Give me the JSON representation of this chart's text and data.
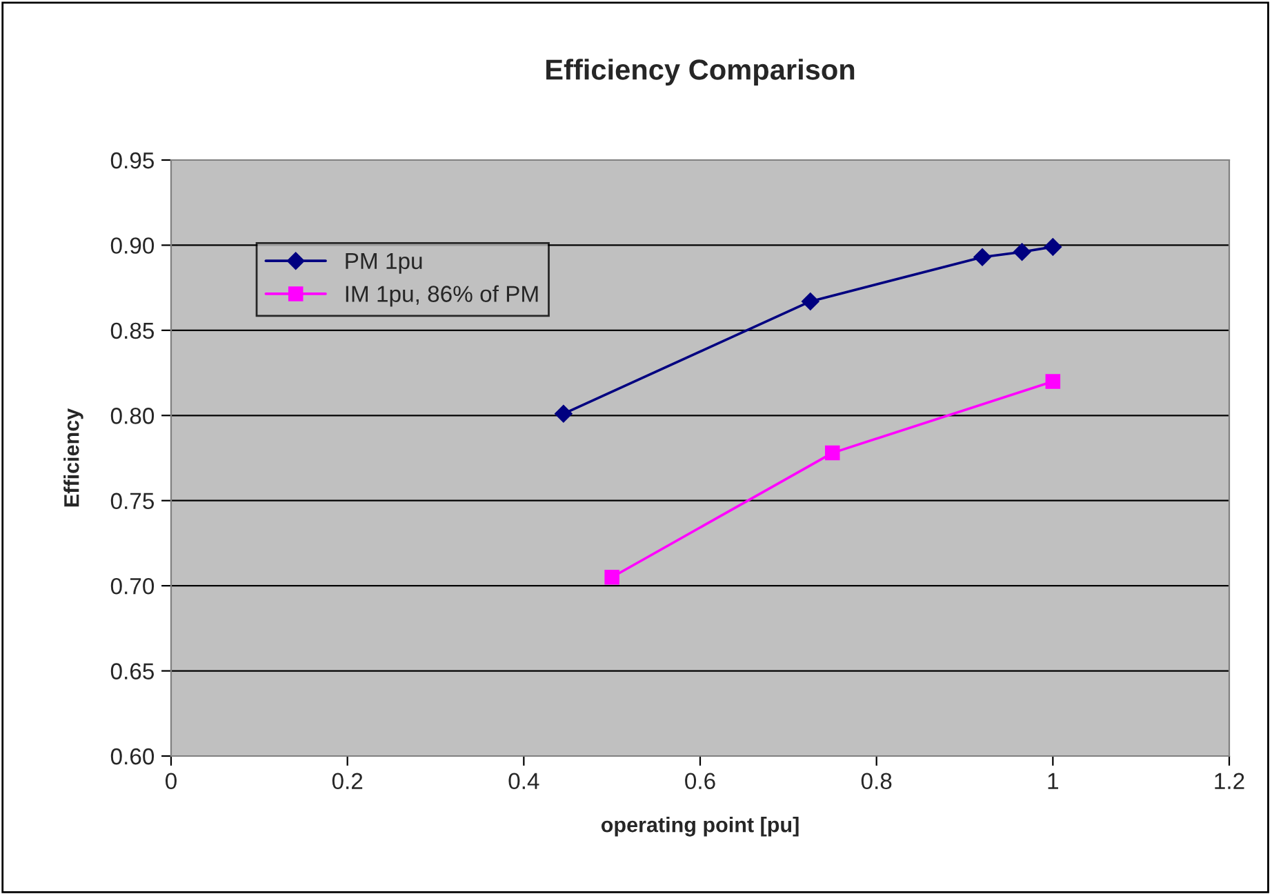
{
  "chart_data": {
    "type": "line",
    "title": "Efficiency Comparison",
    "xlabel": "operating point [pu]",
    "ylabel": "Efficiency",
    "series": [
      {
        "name": "PM 1pu",
        "color": "#000080",
        "marker": "diamond",
        "x": [
          0.445,
          0.725,
          0.92,
          0.965,
          1.0
        ],
        "values": [
          0.801,
          0.867,
          0.893,
          0.896,
          0.899
        ]
      },
      {
        "name": "IM 1pu, 86% of PM",
        "color": "#ff00ff",
        "marker": "square",
        "x": [
          0.5,
          0.75,
          1.0
        ],
        "values": [
          0.705,
          0.778,
          0.82
        ]
      }
    ],
    "xlim": [
      0,
      1.2
    ],
    "xticks": [
      0,
      0.2,
      0.4,
      0.6,
      0.8,
      1,
      1.2
    ],
    "ylim": [
      0.6,
      0.95
    ],
    "yticks": [
      {
        "value": 0.6,
        "label": "0.60"
      },
      {
        "value": 0.65,
        "label": "0.65"
      },
      {
        "value": 0.7,
        "label": "0.70"
      },
      {
        "value": 0.75,
        "label": "0.75"
      },
      {
        "value": 0.8,
        "label": "0.80"
      },
      {
        "value": 0.85,
        "label": "0.85"
      },
      {
        "value": 0.9,
        "label": "0.90"
      },
      {
        "value": 0.95,
        "label": "0.95"
      }
    ],
    "grid": "y",
    "legend": "top left"
  }
}
